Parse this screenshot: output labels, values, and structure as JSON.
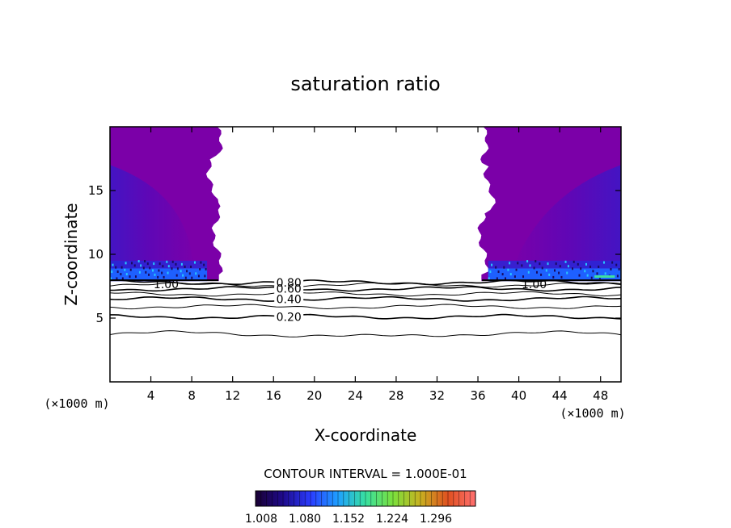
{
  "chart_data": {
    "type": "contour",
    "title": "saturation ratio",
    "xlabel": "X-coordinate",
    "ylabel": "Z-coordinate",
    "x_unit": "(×1000 m)",
    "x_unit_right": "(×1000 m)",
    "xlim": [
      0,
      50
    ],
    "ylim": [
      0,
      20
    ],
    "x_ticks": [
      4,
      8,
      12,
      16,
      20,
      24,
      28,
      32,
      36,
      40,
      44,
      48
    ],
    "y_ticks": [
      5,
      10,
      15
    ],
    "contour_interval_text": "CONTOUR INTERVAL = 1.000E-01",
    "contour_lines": [
      {
        "level": 0.1,
        "z": 3.7
      },
      {
        "level": 0.2,
        "z": 5.1,
        "label": "0.20"
      },
      {
        "level": 0.3,
        "z": 5.9
      },
      {
        "level": 0.4,
        "z": 6.5,
        "label": "0.40"
      },
      {
        "level": 0.5,
        "z": 6.9
      },
      {
        "level": 0.6,
        "z": 7.3,
        "label": "0.60"
      },
      {
        "level": 0.7,
        "z": 7.6
      },
      {
        "level": 0.8,
        "z": 7.8,
        "label": "0.80"
      }
    ],
    "supersaturated_regions": [
      {
        "label": "1.00",
        "x_range": [
          0,
          10.5
        ],
        "z_range": [
          7.9,
          20
        ]
      },
      {
        "label": "1.00",
        "x_range": [
          36.5,
          50
        ],
        "z_range": [
          7.9,
          20
        ]
      }
    ],
    "colorbar": {
      "ticks": [
        "1.008",
        "1.080",
        "1.152",
        "1.224",
        "1.296"
      ],
      "colors": [
        "#1a0033",
        "#1e0a8c",
        "#2a3cff",
        "#1ea0ff",
        "#38e0a0",
        "#7ce03c",
        "#c8b020",
        "#e05020",
        "#ff7070"
      ]
    },
    "fill_colors": {
      "purple": "#7b00a8",
      "violet": "#6000b4",
      "indigo": "#4a10c8",
      "blue": "#2828d8",
      "bright_blue": "#1e60ff",
      "cyan": "#28c8ff",
      "green": "#40e0a0"
    }
  }
}
